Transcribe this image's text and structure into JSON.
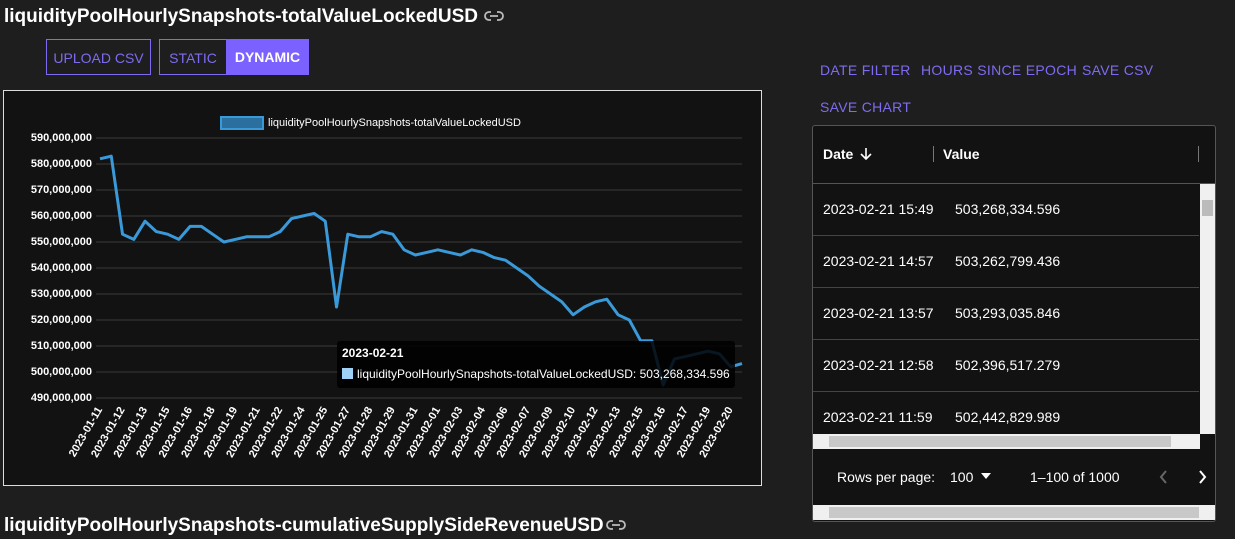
{
  "header": {
    "title": "liquidityPoolHourlySnapshots-totalValueLockedUSD"
  },
  "buttons": [
    "UPLOAD CSV",
    "STATIC",
    "DYNAMIC"
  ],
  "actions": [
    "DATE FILTER",
    "HOURS SINCE EPOCH",
    "SAVE CSV",
    "SAVE CHART"
  ],
  "chart_data": {
    "type": "line",
    "categories": [
      "2023-01-11",
      null,
      "2023-01-12",
      null,
      "2023-01-13",
      null,
      "2023-01-15",
      null,
      "2023-01-16",
      null,
      "2023-01-18",
      null,
      "2023-01-19",
      null,
      "2023-01-21",
      null,
      "2023-01-22",
      null,
      "2023-01-24",
      null,
      "2023-01-25",
      null,
      "2023-01-27",
      null,
      "2023-01-28",
      null,
      "2023-01-29",
      null,
      "2023-01-31",
      null,
      "2023-02-01",
      null,
      "2023-02-03",
      null,
      "2023-02-04",
      null,
      "2023-02-06",
      null,
      "2023-02-07",
      null,
      "2023-02-09",
      null,
      "2023-02-10",
      null,
      "2023-02-12",
      null,
      "2023-02-13",
      null,
      "2023-02-15",
      null,
      "2023-02-16",
      null,
      "2023-02-17",
      null,
      "2023-02-19",
      null,
      "2023-02-20",
      null
    ],
    "series": [
      {
        "name": "liquidityPoolHourlySnapshots-totalValueLockedUSD",
        "color": "#3a9ad9",
        "values": [
          582000000,
          583000000,
          553000000,
          551000000,
          558000000,
          554000000,
          553000000,
          551000000,
          556000000,
          556000000,
          553000000,
          550000000,
          551000000,
          552000000,
          552000000,
          552000000,
          554000000,
          559000000,
          560000000,
          561000000,
          558000000,
          525000000,
          553000000,
          552000000,
          552000000,
          554000000,
          553000000,
          547000000,
          545000000,
          546000000,
          547000000,
          546000000,
          545000000,
          547000000,
          546000000,
          544000000,
          543000000,
          540000000,
          537000000,
          533000000,
          530000000,
          527000000,
          522000000,
          525000000,
          527000000,
          528000000,
          522000000,
          520000000,
          512000000,
          512000000,
          495000000,
          505000000,
          506000000,
          507000000,
          508000000,
          507000000,
          502000000,
          503268334.596
        ]
      }
    ],
    "ylim": [
      490000000,
      590000000
    ],
    "yticks": [
      {
        "value": 490000000,
        "label": "490,000,000"
      },
      {
        "value": 500000000,
        "label": "500,000,000"
      },
      {
        "value": 510000000,
        "label": "510,000,000"
      },
      {
        "value": 520000000,
        "label": "520,000,000"
      },
      {
        "value": 530000000,
        "label": "530,000,000"
      },
      {
        "value": 540000000,
        "label": "540,000,000"
      },
      {
        "value": 550000000,
        "label": "550,000,000"
      },
      {
        "value": 560000000,
        "label": "560,000,000"
      },
      {
        "value": 570000000,
        "label": "570,000,000"
      },
      {
        "value": 580000000,
        "label": "580,000,000"
      },
      {
        "value": 590000000,
        "label": "590,000,000"
      }
    ],
    "grid": true,
    "legend": "top"
  },
  "tooltip": {
    "title": "2023-02-21",
    "text": "liquidityPoolHourlySnapshots-totalValueLockedUSD: 503,268,334.596"
  },
  "table": {
    "columns": [
      "Date",
      "Value"
    ],
    "rows": [
      [
        "2023-02-21 15:49",
        "503,268,334.596"
      ],
      [
        "2023-02-21 14:57",
        "503,262,799.436"
      ],
      [
        "2023-02-21 13:57",
        "503,293,035.846"
      ],
      [
        "2023-02-21 12:58",
        "502,396,517.279"
      ],
      [
        "2023-02-21 11:59",
        "502,442,829.989"
      ]
    ]
  },
  "pagination": {
    "label": "Rows per page:",
    "rows_per_page": "100",
    "range": "1–100 of 1000"
  },
  "next_title": "liquidityPoolHourlySnapshots-cumulativeSupplySideRevenueUSD"
}
